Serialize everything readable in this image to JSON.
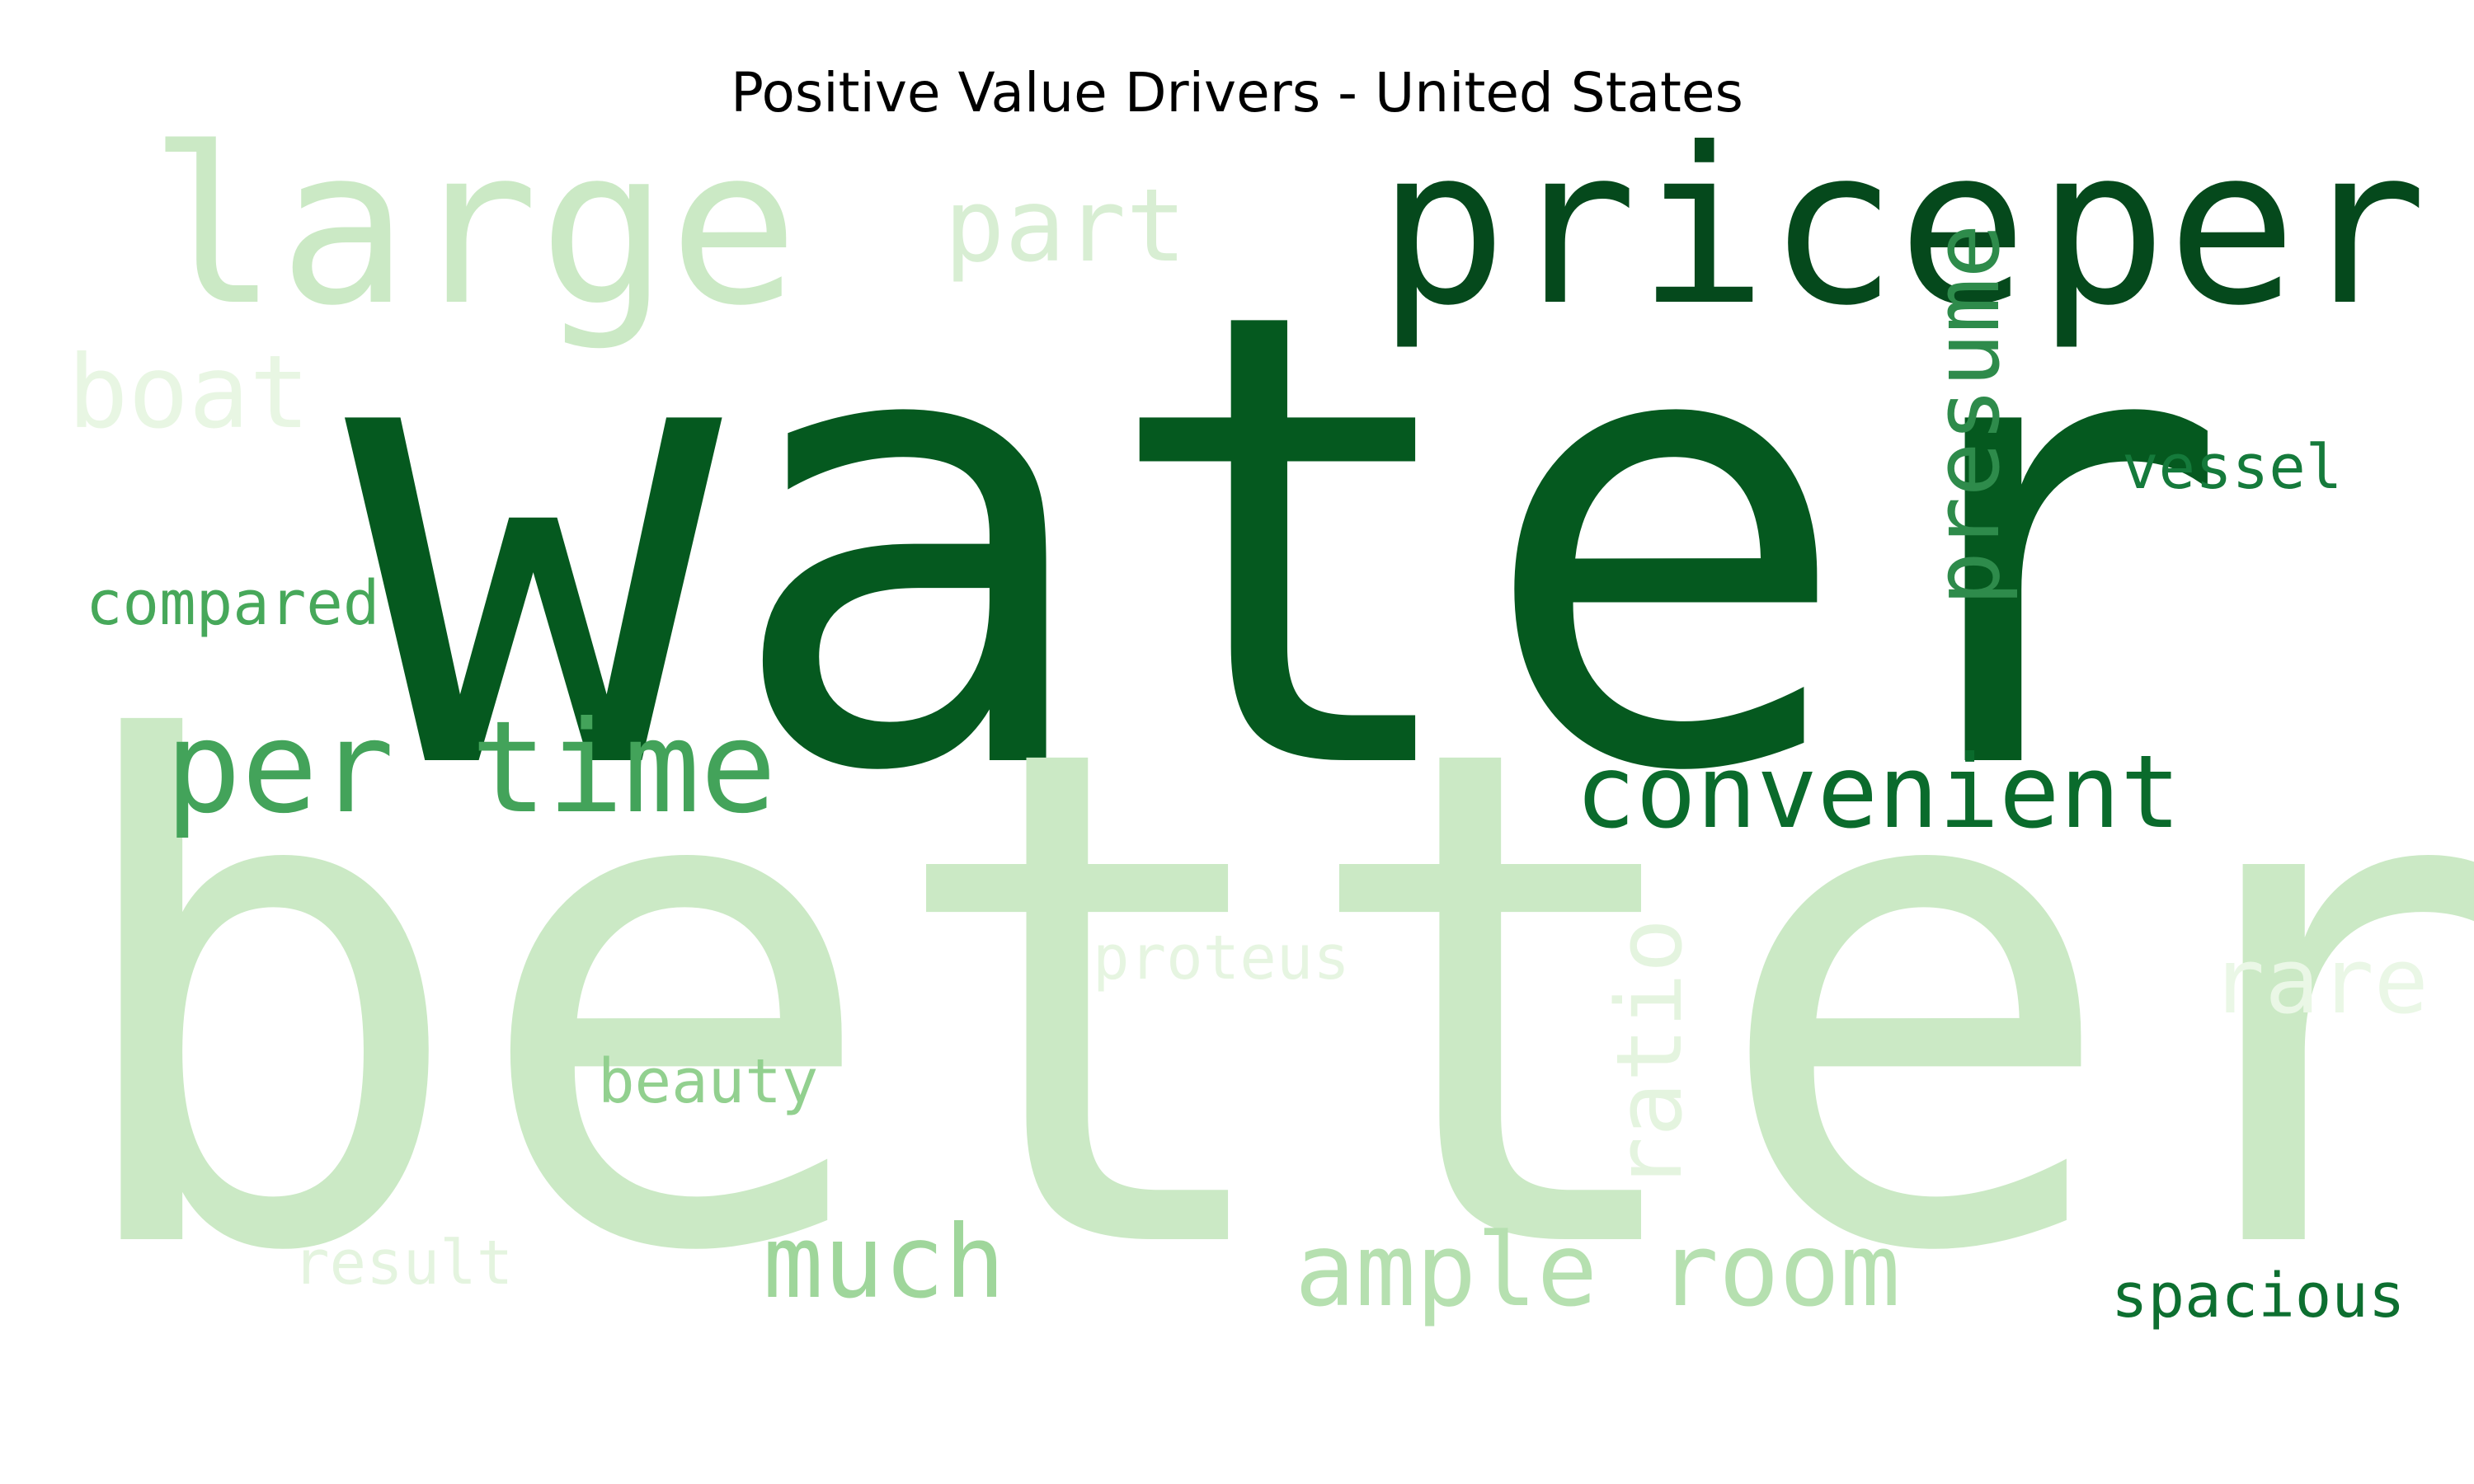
{
  "title": "Positive Value Drivers - United States",
  "words": [
    {
      "text": "water",
      "color": "#05591f"
    },
    {
      "text": "better",
      "color": "#cbe9c5"
    },
    {
      "text": "large",
      "color": "#cbe9c5"
    },
    {
      "text": "part",
      "color": "#d8eed3"
    },
    {
      "text": "price",
      "color": "#05491c"
    },
    {
      "text": "per",
      "color": "#05491c"
    },
    {
      "text": "presume",
      "color": "#2e8b4b"
    },
    {
      "text": "boat",
      "color": "#e8f6e3"
    },
    {
      "text": "vessel",
      "color": "#157a3b"
    },
    {
      "text": "compared",
      "color": "#47a85a"
    },
    {
      "text": "per time",
      "color": "#43a35a"
    },
    {
      "text": "convenient",
      "color": "#0a6b2c"
    },
    {
      "text": "ratio",
      "color": "#e4f4df"
    },
    {
      "text": "proteus",
      "color": "#e6f5e1"
    },
    {
      "text": "rare",
      "color": "#eaf7e6"
    },
    {
      "text": "beauty",
      "color": "#92d08f"
    },
    {
      "text": "result",
      "color": "#e4f4df"
    },
    {
      "text": "much",
      "color": "#9fd69b"
    },
    {
      "text": "ample room",
      "color": "#b6e0b0"
    },
    {
      "text": "spacious",
      "color": "#0d6f30"
    }
  ]
}
